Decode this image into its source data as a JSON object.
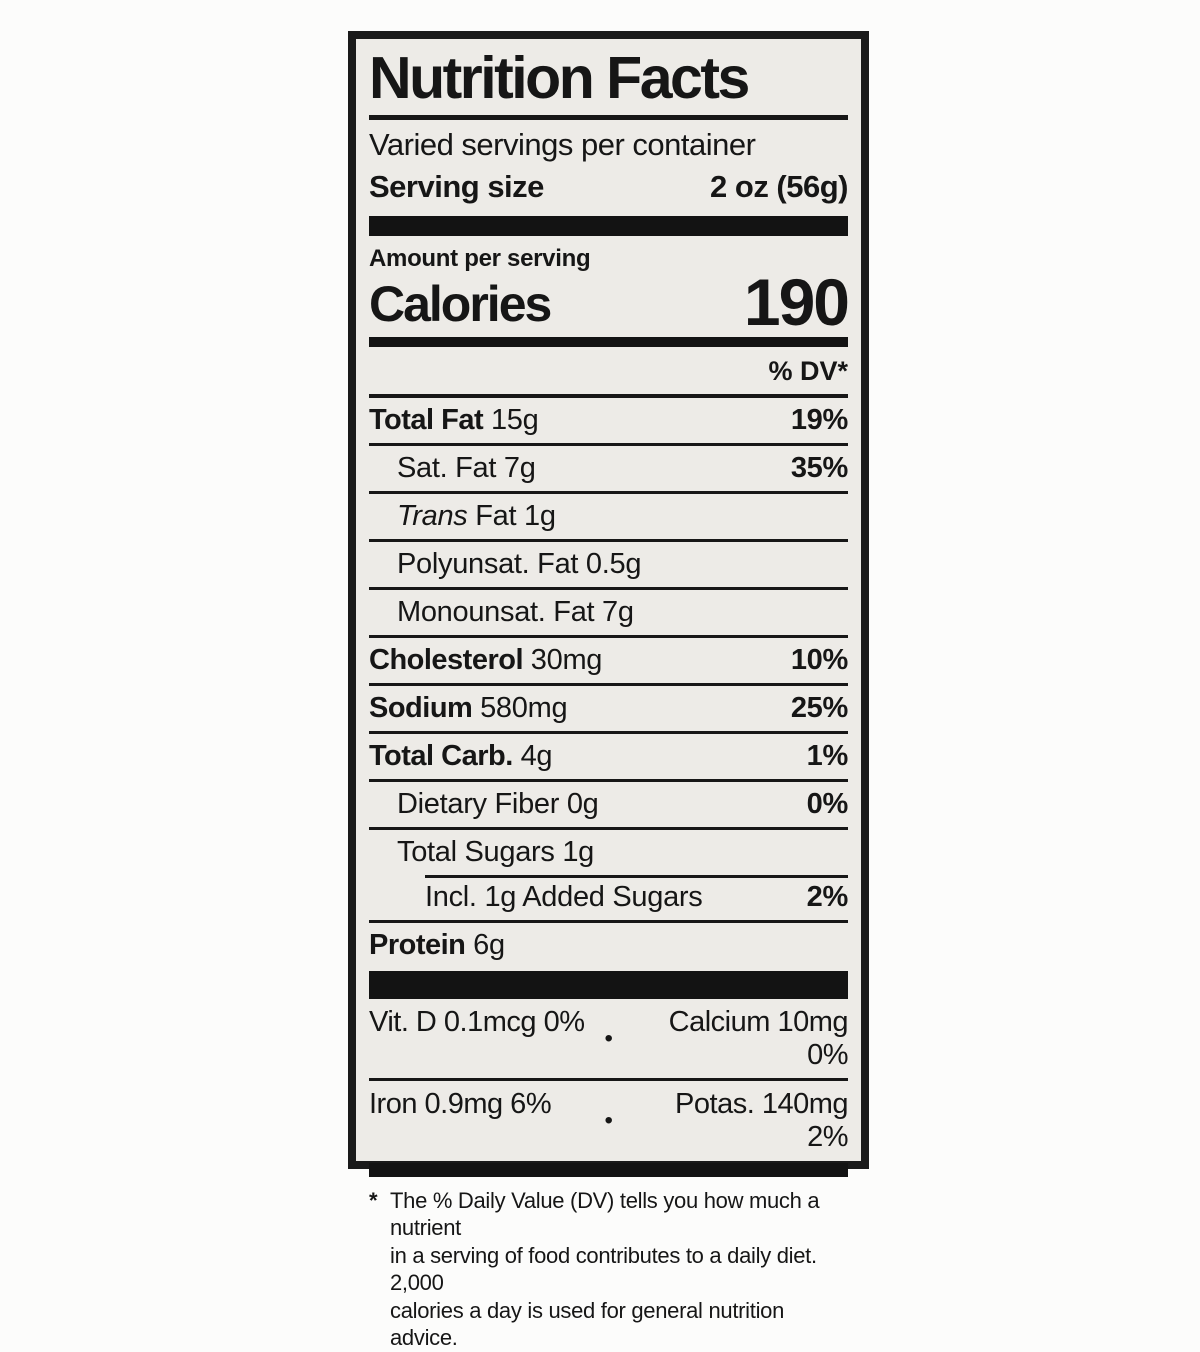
{
  "colors": {
    "ink": "#161616",
    "paper": "#edebe7",
    "page": "#fcfcfb"
  },
  "label": {
    "title": "Nutrition Facts",
    "servings_line": "Varied servings per container",
    "serving_size": {
      "label": "Serving size",
      "value": "2 oz (56g)"
    },
    "amount_per_serving": "Amount per serving",
    "calories": {
      "label": "Calories",
      "value": "190"
    },
    "dv_header": "% DV*",
    "rows": [
      {
        "bold": "Total Fat",
        "rest": " 15g",
        "dv": "19%"
      },
      {
        "rest": "Sat. Fat 7g",
        "dv": "35%"
      },
      {
        "italic": "Trans",
        "rest": " Fat 1g",
        "dv": ""
      },
      {
        "rest": "Polyunsat. Fat 0.5g",
        "dv": ""
      },
      {
        "rest": "Monounsat. Fat 7g",
        "dv": ""
      },
      {
        "bold": "Cholesterol",
        "rest": " 30mg",
        "dv": "10%"
      },
      {
        "bold": "Sodium",
        "rest": " 580mg",
        "dv": "25%"
      },
      {
        "bold": "Total Carb.",
        "rest": " 4g",
        "dv": "1%"
      },
      {
        "rest": "Dietary Fiber 0g",
        "dv": "0%"
      },
      {
        "rest": "Total Sugars 1g",
        "dv": ""
      },
      {
        "rest": "Incl. 1g Added Sugars",
        "dv": "2%"
      },
      {
        "bold": "Protein",
        "rest": " 6g",
        "dv": ""
      }
    ],
    "micros": [
      {
        "left": "Vit. D 0.1mcg 0%",
        "bullet": "•",
        "right": "Calcium 10mg 0%"
      },
      {
        "left": "Iron 0.9mg 6%",
        "bullet": "•",
        "right": "Potas. 140mg 2%"
      }
    ],
    "footnote": {
      "marker": "*",
      "lines": [
        "The % Daily Value (DV) tells you how much a nutrient",
        "in a serving of food contributes to a daily diet. 2,000",
        "calories a day is used for general nutrition advice."
      ]
    }
  }
}
